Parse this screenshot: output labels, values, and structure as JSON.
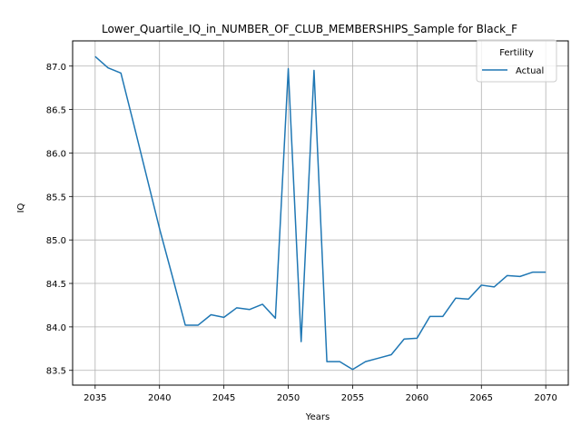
{
  "chart_data": {
    "type": "line",
    "title": "Lower_Quartile_IQ_in_NUMBER_OF_CLUB_MEMBERSHIPS_Sample for Black_F",
    "xlabel": "Years",
    "ylabel": "IQ",
    "xlim": [
      2033.25,
      2071.75
    ],
    "ylim": [
      83.33,
      87.29
    ],
    "x_ticks": [
      2035,
      2040,
      2045,
      2050,
      2055,
      2060,
      2065,
      2070
    ],
    "y_ticks": [
      83.5,
      84.0,
      84.5,
      85.0,
      85.5,
      86.0,
      86.5,
      87.0
    ],
    "y_tick_labels": [
      "83.5",
      "84.0",
      "84.5",
      "85.0",
      "85.5",
      "86.0",
      "86.5",
      "87.0"
    ],
    "grid": true,
    "legend": {
      "title": "Fertility",
      "placement": "top-right"
    },
    "series": [
      {
        "name": "Actual",
        "color": "#1f77b4",
        "x": [
          2035,
          2036,
          2037,
          2038,
          2039,
          2040,
          2041,
          2042,
          2043,
          2044,
          2045,
          2046,
          2047,
          2048,
          2049,
          2050,
          2051,
          2052,
          2053,
          2054,
          2055,
          2056,
          2057,
          2058,
          2059,
          2060,
          2061,
          2062,
          2063,
          2064,
          2065,
          2066,
          2067,
          2068,
          2069,
          2070
        ],
        "y": [
          87.11,
          86.98,
          86.92,
          86.33,
          85.73,
          85.13,
          84.58,
          84.02,
          84.02,
          84.14,
          84.11,
          84.22,
          84.2,
          84.26,
          84.1,
          86.97,
          83.83,
          86.95,
          83.6,
          83.6,
          83.51,
          83.6,
          83.64,
          83.68,
          83.86,
          83.87,
          84.12,
          84.12,
          84.33,
          84.32,
          84.48,
          84.46,
          84.59,
          84.58,
          84.63,
          84.63
        ]
      }
    ]
  }
}
